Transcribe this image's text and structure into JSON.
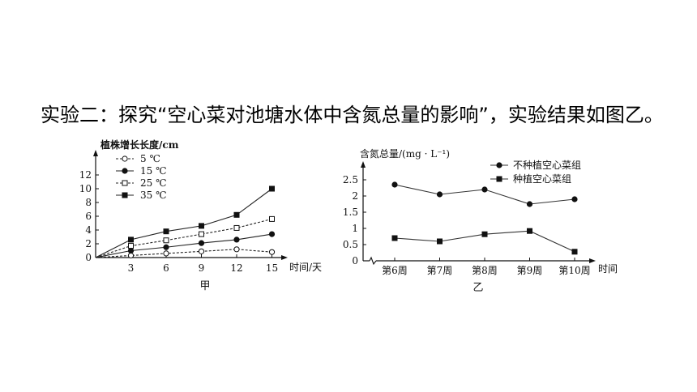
{
  "heading": "实验二：探究“空心菜对池塘水体中含氮总量的影响”，实验结果如图乙。",
  "chart_data": [
    {
      "type": "line",
      "caption": "甲",
      "ylabel": "植株增长长度/cm",
      "xlabel": "时间/天",
      "x": [
        0,
        3,
        6,
        9,
        12,
        15
      ],
      "x_ticks": [
        "3",
        "6",
        "9",
        "12",
        "15"
      ],
      "y_ticks": [
        "0",
        "2",
        "4",
        "6",
        "8",
        "10",
        "12"
      ],
      "ylim": [
        0,
        12
      ],
      "xlim": [
        0,
        15
      ],
      "legend_position": "top-left",
      "series": [
        {
          "name": "5 ℃",
          "marker": "open-circle",
          "dash": "dashed",
          "values": [
            0,
            0.3,
            0.6,
            0.9,
            1.2,
            0.8
          ]
        },
        {
          "name": "15 ℃",
          "marker": "filled-circle",
          "dash": "solid",
          "values": [
            0,
            1.0,
            1.5,
            2.1,
            2.6,
            3.4
          ]
        },
        {
          "name": "25 ℃",
          "marker": "open-square",
          "dash": "dashed",
          "values": [
            0,
            1.7,
            2.5,
            3.4,
            4.3,
            5.6
          ]
        },
        {
          "name": "35 ℃",
          "marker": "filled-square",
          "dash": "solid",
          "values": [
            0,
            2.6,
            3.8,
            4.6,
            6.2,
            10.0
          ]
        }
      ]
    },
    {
      "type": "line",
      "caption": "乙",
      "ylabel": "含氮总量/(mg · L⁻¹)",
      "xlabel": "时间",
      "categories": [
        "第6周",
        "第7周",
        "第8周",
        "第9周",
        "第10周"
      ],
      "y_ticks": [
        "0",
        "0.5",
        "1",
        "1.5",
        "2",
        "2.5"
      ],
      "ylim": [
        0,
        2.5
      ],
      "axis_break": true,
      "legend_position": "top-right",
      "series": [
        {
          "name": "不种植空心菜组",
          "marker": "filled-circle",
          "values": [
            2.35,
            2.05,
            2.2,
            1.75,
            1.9
          ]
        },
        {
          "name": "种植空心菜组",
          "marker": "filled-square",
          "values": [
            0.7,
            0.6,
            0.82,
            0.92,
            0.28
          ]
        }
      ]
    }
  ]
}
